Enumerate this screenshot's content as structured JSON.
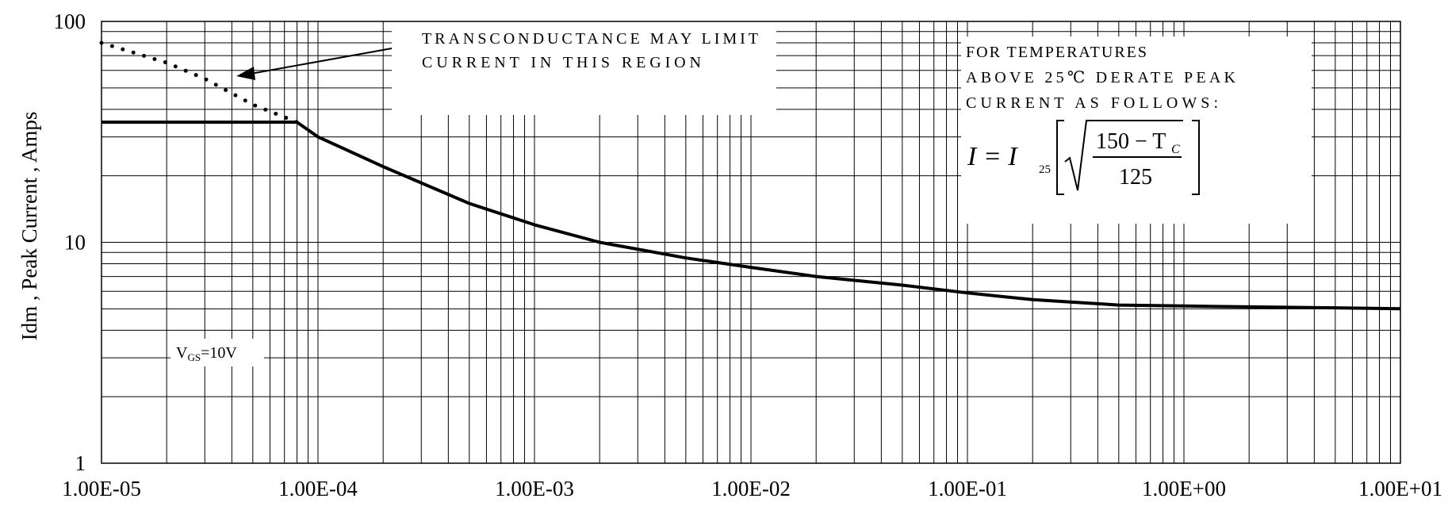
{
  "chart_data": {
    "type": "line",
    "title": "",
    "xlabel": "",
    "ylabel": "Idm , Peak Current , Amps",
    "x_scale": "log",
    "y_scale": "log",
    "xlim": [
      1e-05,
      10
    ],
    "ylim": [
      1,
      100
    ],
    "grid": true,
    "x_ticks": [
      "1.00E-05",
      "1.00E-04",
      "1.00E-03",
      "1.00E-02",
      "1.00E-01",
      "1.00E+00",
      "1.00E+01"
    ],
    "y_ticks": [
      "1",
      "10",
      "100"
    ],
    "series": [
      {
        "style": "solid",
        "x": [
          1e-05,
          8e-05,
          0.0001,
          0.0002,
          0.0005,
          0.001,
          0.002,
          0.005,
          0.01,
          0.02,
          0.05,
          0.1,
          0.2,
          0.5,
          1,
          2,
          5,
          10
        ],
        "y": [
          35,
          35,
          30,
          22,
          15,
          12,
          10,
          8.5,
          7.7,
          7,
          6.4,
          5.9,
          5.5,
          5.2,
          5.15,
          5.1,
          5.05,
          5.0
        ]
      },
      {
        "style": "dotted",
        "x": [
          1e-05,
          2e-05,
          3e-05,
          5e-05,
          8e-05
        ],
        "y": [
          80,
          65,
          55,
          42,
          35
        ]
      }
    ],
    "annotations": {
      "transconductance_line1": "TRANSCONDUCTANCE MAY LIMIT",
      "transconductance_line2": "CURRENT IN THIS REGION",
      "derate_line1": "FOR TEMPERATURES",
      "derate_line2": "ABOVE 25℃ DERATE PEAK",
      "derate_line3": "CURRENT AS FOLLOWS:",
      "formula_lhs": "I = I",
      "formula_sub": "25",
      "formula_numerator": "150 − T",
      "formula_numerator_sub": "C",
      "formula_denominator": "125",
      "vgs_main": "V",
      "vgs_sub": "GS",
      "vgs_value": "=10V"
    }
  }
}
